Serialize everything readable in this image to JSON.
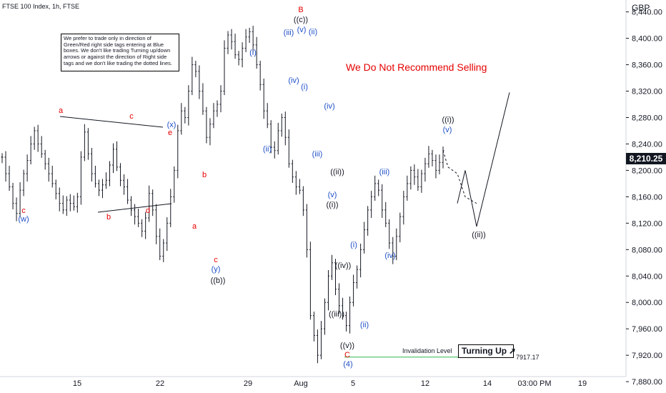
{
  "chart_title": "FTSE 100 Index, 1h, FTSE",
  "currency": "GBP",
  "current_price_label": "8,210.25",
  "note_text": "We prefer to trade only in direction of Green/Red right side tags entering at Blue boxes. We don't like trading Turning up/down arrows or against the direction of Right side tags and we don't like trading the dotted lines.",
  "warning_text": "We Do Not Recommend Selling",
  "turning_label": "Turning Up",
  "invalidation_label": "Invalidation Level",
  "invalidation_value_label": "7917.17",
  "colors": {
    "red": "#e60000",
    "blue": "#1e4fc8",
    "black": "#131722",
    "green": "#2db84a"
  },
  "chart_data": {
    "type": "line",
    "title": "FTSE 100 Index, 1h, FTSE",
    "y_ticks": [
      "7,880.00",
      "7,920.00",
      "7,960.00",
      "8,000.00",
      "8,040.00",
      "8,080.00",
      "8,120.00",
      "8,160.00",
      "8,200.00",
      "8,240.00",
      "8,280.00",
      "8,320.00",
      "8,360.00",
      "8,400.00",
      "8,440.00"
    ],
    "x_ticks": [
      "15",
      "22",
      "29",
      "Aug",
      "5",
      "12",
      "14",
      "03:00 PM",
      "19"
    ],
    "ylim": [
      7865,
      8458
    ],
    "series": [
      {
        "values": [
          8220,
          8195,
          8175,
          8150,
          8135,
          8170,
          8195,
          8215,
          8240,
          8260,
          8240,
          8225,
          8210,
          8195,
          8180,
          8165,
          8150,
          8140,
          8155,
          8150,
          8145,
          8160,
          8220,
          8258,
          8225,
          8195,
          8180,
          8170,
          8178,
          8185,
          8208,
          8232,
          8205,
          8185,
          8175,
          8155,
          8140,
          8130,
          8120,
          8108,
          8128,
          8165,
          8140,
          8100,
          8070,
          8090,
          8120,
          8160,
          8200,
          8260,
          8290,
          8280,
          8320,
          8360,
          8350,
          8320,
          8290,
          8250,
          8270,
          8290,
          8300,
          8320,
          8385,
          8405,
          8395,
          8375,
          8368,
          8385,
          8402,
          8410,
          8390,
          8360,
          8330,
          8290,
          8270,
          8235,
          8230,
          8260,
          8280,
          8250,
          8210,
          8190,
          8175,
          8170,
          8140,
          8080,
          7980,
          7950,
          7920,
          7960,
          8000,
          8040,
          8060,
          8020,
          7995,
          7980,
          7965,
          8000,
          8030,
          8050,
          8080,
          8110,
          8140,
          8160,
          8180,
          8170,
          8140,
          8120,
          8090,
          8070,
          8100,
          8130,
          8160,
          8180,
          8200,
          8190,
          8175,
          8195,
          8210,
          8225,
          8215,
          8200,
          8212,
          8230
        ]
      },
      {
        "values": [
          8230,
          8205,
          8195,
          8160,
          8150,
          8168,
          8125,
          8095
        ]
      }
    ]
  },
  "annotations": [
    {
      "text": "a",
      "color": "red"
    },
    {
      "text": "c",
      "color": "red"
    },
    {
      "text": "(x)",
      "color": "blue"
    },
    {
      "text": "e",
      "color": "red"
    },
    {
      "text": "c",
      "color": "red"
    },
    {
      "text": "(w)",
      "color": "blue"
    },
    {
      "text": "b",
      "color": "red"
    },
    {
      "text": "d",
      "color": "red"
    },
    {
      "text": "b",
      "color": "red"
    },
    {
      "text": "a",
      "color": "red"
    },
    {
      "text": "c",
      "color": "red"
    },
    {
      "text": "(y)",
      "color": "blue"
    },
    {
      "text": "((b))",
      "color": "black"
    },
    {
      "text": "B",
      "color": "red"
    },
    {
      "text": "((c))",
      "color": "black"
    },
    {
      "text": "(iii)",
      "color": "blue"
    },
    {
      "text": "(v)",
      "color": "blue"
    },
    {
      "text": "(ii)",
      "color": "blue"
    },
    {
      "text": "(i)",
      "color": "blue"
    },
    {
      "text": "(iv)",
      "color": "blue"
    },
    {
      "text": "(i)",
      "color": "blue"
    },
    {
      "text": "(ii)",
      "color": "blue"
    },
    {
      "text": "(iv)",
      "color": "blue"
    },
    {
      "text": "(iii)",
      "color": "blue"
    },
    {
      "text": "((ii))",
      "color": "black"
    },
    {
      "text": "(v)",
      "color": "blue"
    },
    {
      "text": "((i))",
      "color": "black"
    },
    {
      "text": "(i)",
      "color": "blue"
    },
    {
      "text": "((iv))",
      "color": "black"
    },
    {
      "text": "((iii))",
      "color": "black"
    },
    {
      "text": "(ii)",
      "color": "blue"
    },
    {
      "text": "((v))",
      "color": "black"
    },
    {
      "text": "C",
      "color": "red"
    },
    {
      "text": "(4)",
      "color": "blue"
    },
    {
      "text": "(iii)",
      "color": "blue"
    },
    {
      "text": "(iv)",
      "color": "blue"
    },
    {
      "text": "((i))",
      "color": "black"
    },
    {
      "text": "(v)",
      "color": "blue"
    },
    {
      "text": "((ii))",
      "color": "black"
    }
  ]
}
